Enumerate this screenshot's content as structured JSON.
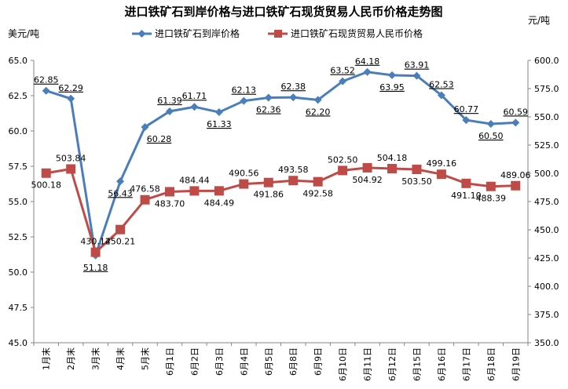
{
  "chart_data": {
    "type": "line",
    "title": "进口铁矿石到岸价格与进口铁矿石现货贸易人民币价格走势图",
    "ylabel_left": "美元/吨",
    "ylabel_right": "元/吨",
    "ylim_left": [
      45,
      65
    ],
    "ylim_right": [
      350,
      600
    ],
    "yticks_left": [
      "45.0",
      "47.5",
      "50.0",
      "52.5",
      "55.0",
      "57.5",
      "60.0",
      "62.5",
      "65.0"
    ],
    "yticks_right": [
      "350.0",
      "375.0",
      "400.0",
      "425.0",
      "450.0",
      "475.0",
      "500.0",
      "525.0",
      "550.0",
      "575.0",
      "600.0"
    ],
    "categories": [
      "1月末",
      "2月末",
      "3月末",
      "4月末",
      "5月末",
      "6月1日",
      "6月2日",
      "6月3日",
      "6月4日",
      "6月5日",
      "6月8日",
      "6月9日",
      "6月10日",
      "6月11日",
      "6月12日",
      "6月15日",
      "6月16日",
      "6月17日",
      "6月18日",
      "6月19日"
    ],
    "legend_position": "top",
    "series": [
      {
        "name": "进口铁矿石到岸价格",
        "axis": "left",
        "color": "#4a7ebb",
        "marker": "diamond",
        "values": [
          62.85,
          62.29,
          51.18,
          56.43,
          60.28,
          61.39,
          61.71,
          61.33,
          62.13,
          62.36,
          62.38,
          62.2,
          63.52,
          64.18,
          63.95,
          63.91,
          62.53,
          60.77,
          60.5,
          60.59
        ],
        "labels": [
          "62.85",
          "62.29",
          "51.18",
          "56.43",
          "60.28",
          "61.39",
          "61.71",
          "61.33",
          "62.13",
          "62.36",
          "62.38",
          "62.20",
          "63.52",
          "64.18",
          "63.95",
          "63.91",
          "62.53",
          "60.77",
          "60.50",
          "60.59"
        ]
      },
      {
        "name": "进口铁矿石现货贸易人民币价格",
        "axis": "right",
        "color": "#be4b48",
        "marker": "square",
        "values": [
          500.18,
          503.84,
          430.12,
          450.21,
          476.58,
          483.7,
          484.44,
          484.49,
          490.56,
          491.86,
          493.58,
          492.58,
          502.5,
          504.92,
          504.18,
          503.5,
          499.16,
          491.1,
          488.39,
          489.06
        ],
        "labels": [
          "500.18",
          "503.84",
          "430.12",
          "450.21",
          "476.58",
          "483.70",
          "484.44",
          "484.49",
          "490.56",
          "491.86",
          "493.58",
          "492.58",
          "502.50",
          "504.92",
          "504.18",
          "503.50",
          "499.16",
          "491.10",
          "488.39",
          "489.06"
        ]
      }
    ]
  }
}
